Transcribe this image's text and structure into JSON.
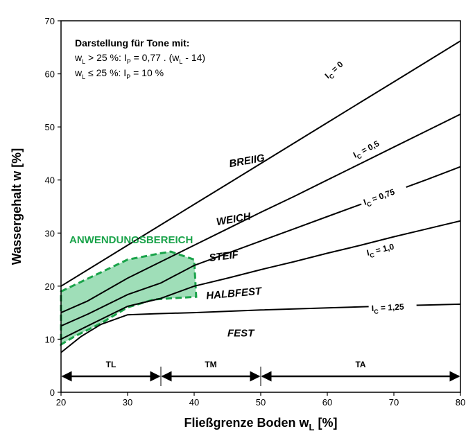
{
  "chart_data": {
    "type": "line",
    "xlabel": "Fließgrenze Boden w",
    "xlabel_sub": "L",
    "xlabel_unit": " [%]",
    "ylabel": "Wassergehalt w [%]",
    "xlim": [
      20,
      80
    ],
    "ylim": [
      0,
      70
    ],
    "xticks": [
      20,
      30,
      40,
      50,
      60,
      70,
      80
    ],
    "yticks": [
      0,
      10,
      20,
      30,
      40,
      50,
      60,
      70
    ],
    "grid": false,
    "note": {
      "title": "Darstellung für Tone mit:",
      "line1": {
        "a": "w",
        "a_sub": "L",
        "b": " > 25 %: I",
        "b_sub": "P",
        "c": " = 0,77 . (w",
        "c_sub": "L",
        "d": " - 14)"
      },
      "line2": {
        "a": "w",
        "a_sub": "L",
        "b": " ≤ 25 %: I",
        "b_sub": "P",
        "c": " = 10 %"
      }
    },
    "series": [
      {
        "name": "I_C = 0",
        "label_main": "I",
        "label_sub": "C",
        "label_rest": " = 0",
        "points": [
          [
            20,
            20
          ],
          [
            25,
            23.85
          ],
          [
            30,
            27.7
          ],
          [
            35,
            31.55
          ],
          [
            40,
            35.4
          ],
          [
            45,
            39.25
          ],
          [
            50,
            43.1
          ],
          [
            55,
            46.95
          ],
          [
            60,
            50.8
          ],
          [
            65,
            54.65
          ],
          [
            70,
            58.5
          ],
          [
            75,
            62.35
          ],
          [
            80,
            66.2
          ]
        ]
      },
      {
        "name": "I_C = 0,5",
        "label_main": "I",
        "label_sub": "C",
        "label_rest": " = 0,5",
        "points": [
          [
            20,
            15
          ],
          [
            24,
            17.2
          ],
          [
            30,
            21.5
          ],
          [
            35,
            24.6
          ],
          [
            40,
            27.7
          ],
          [
            45,
            30.8
          ],
          [
            50,
            33.9
          ],
          [
            55,
            36.9
          ],
          [
            60,
            40
          ],
          [
            65,
            43.1
          ],
          [
            70,
            46.2
          ],
          [
            75,
            49.3
          ],
          [
            80,
            52.4
          ]
        ]
      },
      {
        "name": "I_C = 0,75",
        "label_main": "I",
        "label_sub": "C",
        "label_rest": " = 0,75",
        "points": [
          [
            20,
            12.5
          ],
          [
            24,
            14.7
          ],
          [
            30,
            18.4
          ],
          [
            35,
            20.6
          ],
          [
            40,
            23.9
          ],
          [
            45,
            26.2
          ],
          [
            50,
            28.5
          ],
          [
            55,
            30.8
          ],
          [
            60,
            33.1
          ],
          [
            65,
            35.4
          ],
          [
            70,
            37.8
          ],
          [
            75,
            40.1
          ],
          [
            80,
            42.5
          ]
        ]
      },
      {
        "name": "I_C = 1,0",
        "label_main": "I",
        "label_sub": "C",
        "label_rest": " = 1,0",
        "points": [
          [
            20,
            10
          ],
          [
            24,
            12.5
          ],
          [
            30,
            16.2
          ],
          [
            35,
            17.7
          ],
          [
            40,
            20
          ],
          [
            45,
            21.5
          ],
          [
            50,
            23.1
          ],
          [
            55,
            24.6
          ],
          [
            60,
            26.2
          ],
          [
            65,
            27.7
          ],
          [
            70,
            29.3
          ],
          [
            75,
            30.8
          ],
          [
            80,
            32.3
          ]
        ]
      },
      {
        "name": "I_C = 1,25",
        "label_main": "I",
        "label_sub": "C",
        "label_rest": " = 1,25",
        "points": [
          [
            20,
            7.5
          ],
          [
            23,
            10.5
          ],
          [
            26,
            12.8
          ],
          [
            30,
            14.6
          ],
          [
            34,
            14.8
          ],
          [
            40,
            15
          ],
          [
            50,
            15.5
          ],
          [
            60,
            15.9
          ],
          [
            70,
            16.3
          ],
          [
            80,
            16.6
          ]
        ]
      }
    ],
    "zones": [
      {
        "label": "BREIIG",
        "x": 48,
        "y": 43
      },
      {
        "label": "WEICH",
        "x": 46,
        "y": 32
      },
      {
        "label": "STEIF",
        "x": 44.5,
        "y": 25
      },
      {
        "label": "HALBFEST",
        "x": 46,
        "y": 18
      },
      {
        "label": "FEST",
        "x": 47,
        "y": 10.5
      }
    ],
    "region": {
      "label": "ANWENDUNGSBEREICH",
      "color": "#1aa34a",
      "fill": "#7fd3a0",
      "polygon": [
        [
          20,
          19
        ],
        [
          30,
          25
        ],
        [
          35,
          26.2
        ],
        [
          36.5,
          26.5
        ],
        [
          40,
          25
        ],
        [
          40.3,
          18
        ],
        [
          34,
          17.5
        ],
        [
          30,
          16
        ],
        [
          26,
          13
        ],
        [
          22,
          10.5
        ],
        [
          20,
          9
        ]
      ]
    },
    "ranges": [
      {
        "label": "TL",
        "from": 20,
        "to": 35
      },
      {
        "label": "TM",
        "from": 35,
        "to": 50
      },
      {
        "label": "TA",
        "from": 50,
        "to": 80
      }
    ]
  }
}
